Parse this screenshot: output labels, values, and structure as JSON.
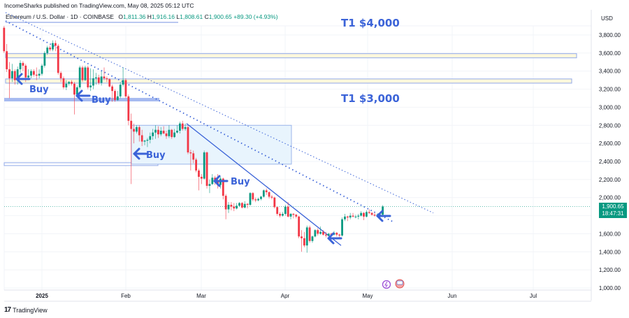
{
  "header": {
    "published": "IncomeSharks published on TradingView.com, May 08, 2025 05:12 UTC",
    "symbol": "Ethereum / U.S. Dollar · 1D · COINBASE",
    "open_label": "O",
    "open": "1,811.36",
    "high_label": "H",
    "high": "1,916.16",
    "low_label": "L",
    "low": "1,808.61",
    "close_label": "C",
    "close": "1,900.65",
    "change": "+89.30 (+4.93%)"
  },
  "price_axis": {
    "currency": "USD",
    "ticks": [
      "3,800.00",
      "3,600.00",
      "3,400.00",
      "3,200.00",
      "3,000.00",
      "2,800.00",
      "2,600.00",
      "2,400.00",
      "2,200.00",
      "2,000.00",
      "1,600.00",
      "1,400.00",
      "1,200.00",
      "1,000.00"
    ],
    "current_price": "1,900.65",
    "countdown": "18:47:31"
  },
  "time_axis": {
    "labels": [
      "2025",
      "Feb",
      "Mar",
      "Apr",
      "May",
      "Jun",
      "Jul"
    ]
  },
  "annotations": {
    "target_4000": "T1 $4,000",
    "target_3000": "T1 $3,000",
    "buy_labels": [
      "Buy",
      "Buy",
      "Buy",
      "Buy"
    ]
  },
  "footer": {
    "brand": "TradingView",
    "logo": "17"
  },
  "colors": {
    "up": "#089981",
    "down": "#f23645",
    "annotation": "#3b63d8",
    "box_fill": "#e3f2fd"
  },
  "chart_data": {
    "type": "candlestick",
    "title": "Ethereum / U.S. Dollar · 1D · COINBASE",
    "ylabel": "USD",
    "ylim": [
      950,
      3900
    ],
    "x_labels": [
      "2025",
      "Feb",
      "Mar",
      "Apr",
      "May",
      "Jun",
      "Jul"
    ],
    "ohlc": [
      [
        "2024-12-18",
        3880,
        3900,
        3600,
        3620
      ],
      [
        "2024-12-19",
        3620,
        3700,
        3390,
        3420
      ],
      [
        "2024-12-20",
        3420,
        3500,
        3100,
        3320
      ],
      [
        "2024-12-21",
        3320,
        3480,
        3280,
        3400
      ],
      [
        "2024-12-22",
        3400,
        3420,
        3250,
        3300
      ],
      [
        "2024-12-23",
        3300,
        3450,
        3250,
        3420
      ],
      [
        "2024-12-24",
        3420,
        3520,
        3380,
        3490
      ],
      [
        "2024-12-25",
        3490,
        3510,
        3400,
        3460
      ],
      [
        "2024-12-26",
        3460,
        3480,
        3280,
        3330
      ],
      [
        "2024-12-27",
        3330,
        3420,
        3300,
        3350
      ],
      [
        "2024-12-28",
        3350,
        3420,
        3320,
        3400
      ],
      [
        "2024-12-29",
        3400,
        3420,
        3340,
        3360
      ],
      [
        "2024-12-30",
        3360,
        3440,
        3300,
        3350
      ],
      [
        "2024-12-31",
        3350,
        3420,
        3320,
        3370
      ],
      [
        "2025-01-01",
        3370,
        3480,
        3350,
        3460
      ],
      [
        "2025-01-02",
        3460,
        3620,
        3440,
        3600
      ],
      [
        "2025-01-03",
        3600,
        3680,
        3580,
        3660
      ],
      [
        "2025-01-04",
        3660,
        3680,
        3620,
        3640
      ],
      [
        "2025-01-05",
        3640,
        3740,
        3620,
        3710
      ],
      [
        "2025-01-06",
        3710,
        3740,
        3620,
        3680
      ],
      [
        "2025-01-07",
        3680,
        3700,
        3360,
        3380
      ],
      [
        "2025-01-08",
        3380,
        3400,
        3280,
        3320
      ],
      [
        "2025-01-09",
        3320,
        3340,
        3200,
        3220
      ],
      [
        "2025-01-10",
        3220,
        3300,
        3190,
        3260
      ],
      [
        "2025-01-11",
        3260,
        3290,
        3240,
        3280
      ],
      [
        "2025-01-12",
        3280,
        3300,
        3240,
        3260
      ],
      [
        "2025-01-13",
        3260,
        3280,
        2920,
        3140
      ],
      [
        "2025-01-14",
        3140,
        3240,
        3120,
        3220
      ],
      [
        "2025-01-15",
        3220,
        3460,
        3200,
        3440
      ],
      [
        "2025-01-16",
        3440,
        3460,
        3280,
        3300
      ],
      [
        "2025-01-17",
        3300,
        3460,
        3290,
        3440
      ],
      [
        "2025-01-18",
        3440,
        3460,
        3200,
        3220
      ],
      [
        "2025-01-19",
        3220,
        3430,
        3180,
        3240
      ],
      [
        "2025-01-20",
        3240,
        3420,
        3200,
        3320
      ],
      [
        "2025-01-21",
        3320,
        3380,
        3250,
        3330
      ],
      [
        "2025-01-22",
        3330,
        3360,
        3250,
        3270
      ],
      [
        "2025-01-23",
        3270,
        3400,
        3240,
        3340
      ],
      [
        "2025-01-24",
        3340,
        3440,
        3300,
        3320
      ],
      [
        "2025-01-25",
        3320,
        3340,
        3280,
        3310
      ],
      [
        "2025-01-26",
        3310,
        3320,
        3220,
        3230
      ],
      [
        "2025-01-27",
        3230,
        3250,
        3060,
        3180
      ],
      [
        "2025-01-28",
        3180,
        3200,
        3060,
        3080
      ],
      [
        "2025-01-29",
        3080,
        3180,
        3070,
        3120
      ],
      [
        "2025-01-30",
        3120,
        3280,
        3100,
        3250
      ],
      [
        "2025-01-31",
        3250,
        3440,
        3230,
        3300
      ],
      [
        "2025-02-01",
        3300,
        3320,
        3100,
        3120
      ],
      [
        "2025-02-02",
        3120,
        3140,
        2800,
        2850
      ],
      [
        "2025-02-03",
        2850,
        2930,
        2150,
        2760
      ],
      [
        "2025-02-04",
        2760,
        2820,
        2600,
        2730
      ],
      [
        "2025-02-05",
        2730,
        2800,
        2710,
        2780
      ],
      [
        "2025-02-06",
        2780,
        2800,
        2620,
        2690
      ],
      [
        "2025-02-07",
        2690,
        2750,
        2570,
        2620
      ],
      [
        "2025-02-08",
        2620,
        2640,
        2580,
        2630
      ],
      [
        "2025-02-09",
        2630,
        2660,
        2560,
        2640
      ],
      [
        "2025-02-10",
        2640,
        2720,
        2600,
        2680
      ],
      [
        "2025-02-11",
        2680,
        2760,
        2640,
        2720
      ],
      [
        "2025-02-12",
        2720,
        2800,
        2650,
        2750
      ],
      [
        "2025-02-13",
        2750,
        2790,
        2660,
        2700
      ],
      [
        "2025-02-14",
        2700,
        2780,
        2680,
        2740
      ],
      [
        "2025-02-15",
        2740,
        2790,
        2700,
        2710
      ],
      [
        "2025-02-16",
        2710,
        2740,
        2650,
        2680
      ],
      [
        "2025-02-17",
        2680,
        2800,
        2660,
        2750
      ],
      [
        "2025-02-18",
        2750,
        2760,
        2650,
        2670
      ],
      [
        "2025-02-19",
        2670,
        2760,
        2660,
        2720
      ],
      [
        "2025-02-20",
        2720,
        2800,
        2710,
        2740
      ],
      [
        "2025-02-21",
        2740,
        2840,
        2710,
        2820
      ],
      [
        "2025-02-22",
        2820,
        2850,
        2740,
        2760
      ],
      [
        "2025-02-23",
        2760,
        2820,
        2740,
        2780
      ],
      [
        "2025-02-24",
        2780,
        2800,
        2480,
        2500
      ],
      [
        "2025-02-25",
        2500,
        2530,
        2300,
        2490
      ],
      [
        "2025-02-26",
        2490,
        2520,
        2380,
        2420
      ],
      [
        "2025-02-27",
        2420,
        2440,
        2280,
        2300
      ],
      [
        "2025-02-28",
        2300,
        2320,
        2080,
        2230
      ],
      [
        "2025-03-01",
        2230,
        2260,
        2150,
        2210
      ],
      [
        "2025-03-02",
        2210,
        2520,
        2200,
        2500
      ],
      [
        "2025-03-03",
        2500,
        2510,
        2100,
        2130
      ],
      [
        "2025-03-04",
        2130,
        2200,
        2050,
        2150
      ],
      [
        "2025-03-05",
        2150,
        2260,
        2140,
        2220
      ],
      [
        "2025-03-06",
        2220,
        2240,
        2140,
        2180
      ],
      [
        "2025-03-07",
        2180,
        2260,
        2100,
        2140
      ],
      [
        "2025-03-08",
        2140,
        2230,
        2100,
        2210
      ],
      [
        "2025-03-09",
        2210,
        2220,
        1980,
        2020
      ],
      [
        "2025-03-10",
        2020,
        2040,
        1760,
        1870
      ],
      [
        "2025-03-11",
        1870,
        1950,
        1830,
        1920
      ],
      [
        "2025-03-12",
        1920,
        1950,
        1860,
        1900
      ],
      [
        "2025-03-13",
        1900,
        1940,
        1850,
        1880
      ],
      [
        "2025-03-14",
        1880,
        1940,
        1870,
        1910
      ],
      [
        "2025-03-15",
        1910,
        1950,
        1900,
        1940
      ],
      [
        "2025-03-16",
        1940,
        1950,
        1880,
        1890
      ],
      [
        "2025-03-17",
        1890,
        1960,
        1880,
        1930
      ],
      [
        "2025-03-18",
        1930,
        1940,
        1880,
        1920
      ],
      [
        "2025-03-19",
        1920,
        2060,
        1910,
        2050
      ],
      [
        "2025-03-20",
        2050,
        2060,
        1960,
        1980
      ],
      [
        "2025-03-21",
        1980,
        2000,
        1950,
        1970
      ],
      [
        "2025-03-22",
        1970,
        2000,
        1960,
        1985
      ],
      [
        "2025-03-23",
        1985,
        2020,
        1970,
        2010
      ],
      [
        "2025-03-24",
        2010,
        2090,
        2000,
        2080
      ],
      [
        "2025-03-25",
        2080,
        2100,
        2030,
        2060
      ],
      [
        "2025-03-26",
        2060,
        2070,
        1990,
        2010
      ],
      [
        "2025-03-27",
        2010,
        2030,
        1980,
        2000
      ],
      [
        "2025-03-28",
        2000,
        2010,
        1880,
        1895
      ],
      [
        "2025-03-29",
        1895,
        1900,
        1800,
        1820
      ],
      [
        "2025-03-30",
        1820,
        1840,
        1780,
        1800
      ],
      [
        "2025-03-31",
        1800,
        1840,
        1790,
        1820
      ],
      [
        "2025-04-01",
        1820,
        1920,
        1800,
        1900
      ],
      [
        "2025-04-02",
        1900,
        1950,
        1780,
        1790
      ],
      [
        "2025-04-03",
        1790,
        1830,
        1760,
        1820
      ],
      [
        "2025-04-04",
        1820,
        1830,
        1770,
        1810
      ],
      [
        "2025-04-05",
        1810,
        1820,
        1770,
        1790
      ],
      [
        "2025-04-06",
        1790,
        1800,
        1550,
        1570
      ],
      [
        "2025-04-07",
        1570,
        1640,
        1400,
        1550
      ],
      [
        "2025-04-08",
        1550,
        1620,
        1450,
        1470
      ],
      [
        "2025-04-09",
        1470,
        1690,
        1390,
        1670
      ],
      [
        "2025-04-10",
        1670,
        1690,
        1500,
        1520
      ],
      [
        "2025-04-11",
        1520,
        1580,
        1500,
        1570
      ],
      [
        "2025-04-12",
        1570,
        1650,
        1560,
        1640
      ],
      [
        "2025-04-13",
        1640,
        1660,
        1580,
        1600
      ],
      [
        "2025-04-14",
        1600,
        1680,
        1590,
        1620
      ],
      [
        "2025-04-15",
        1620,
        1640,
        1580,
        1590
      ],
      [
        "2025-04-16",
        1590,
        1620,
        1560,
        1580
      ],
      [
        "2025-04-17",
        1580,
        1610,
        1570,
        1600
      ],
      [
        "2025-04-18",
        1600,
        1610,
        1580,
        1590
      ],
      [
        "2025-04-19",
        1590,
        1630,
        1580,
        1610
      ],
      [
        "2025-04-20",
        1610,
        1620,
        1570,
        1590
      ],
      [
        "2025-04-21",
        1590,
        1600,
        1560,
        1580
      ],
      [
        "2025-04-22",
        1580,
        1780,
        1570,
        1760
      ],
      [
        "2025-04-23",
        1760,
        1820,
        1740,
        1790
      ],
      [
        "2025-04-24",
        1790,
        1800,
        1740,
        1780
      ],
      [
        "2025-04-25",
        1780,
        1830,
        1760,
        1800
      ],
      [
        "2025-04-26",
        1800,
        1830,
        1780,
        1790
      ],
      [
        "2025-04-27",
        1790,
        1810,
        1770,
        1790
      ],
      [
        "2025-04-28",
        1790,
        1820,
        1760,
        1800
      ],
      [
        "2025-04-29",
        1800,
        1850,
        1790,
        1830
      ],
      [
        "2025-04-30",
        1830,
        1840,
        1750,
        1790
      ],
      [
        "2025-05-01",
        1790,
        1860,
        1780,
        1840
      ],
      [
        "2025-05-02",
        1840,
        1870,
        1820,
        1830
      ],
      [
        "2025-05-03",
        1830,
        1840,
        1800,
        1810
      ],
      [
        "2025-05-04",
        1810,
        1830,
        1790,
        1800
      ],
      [
        "2025-05-05",
        1800,
        1820,
        1790,
        1810
      ],
      [
        "2025-05-06",
        1810,
        1830,
        1780,
        1811
      ],
      [
        "2025-05-07",
        1811,
        1916,
        1808,
        1900.65
      ]
    ]
  }
}
